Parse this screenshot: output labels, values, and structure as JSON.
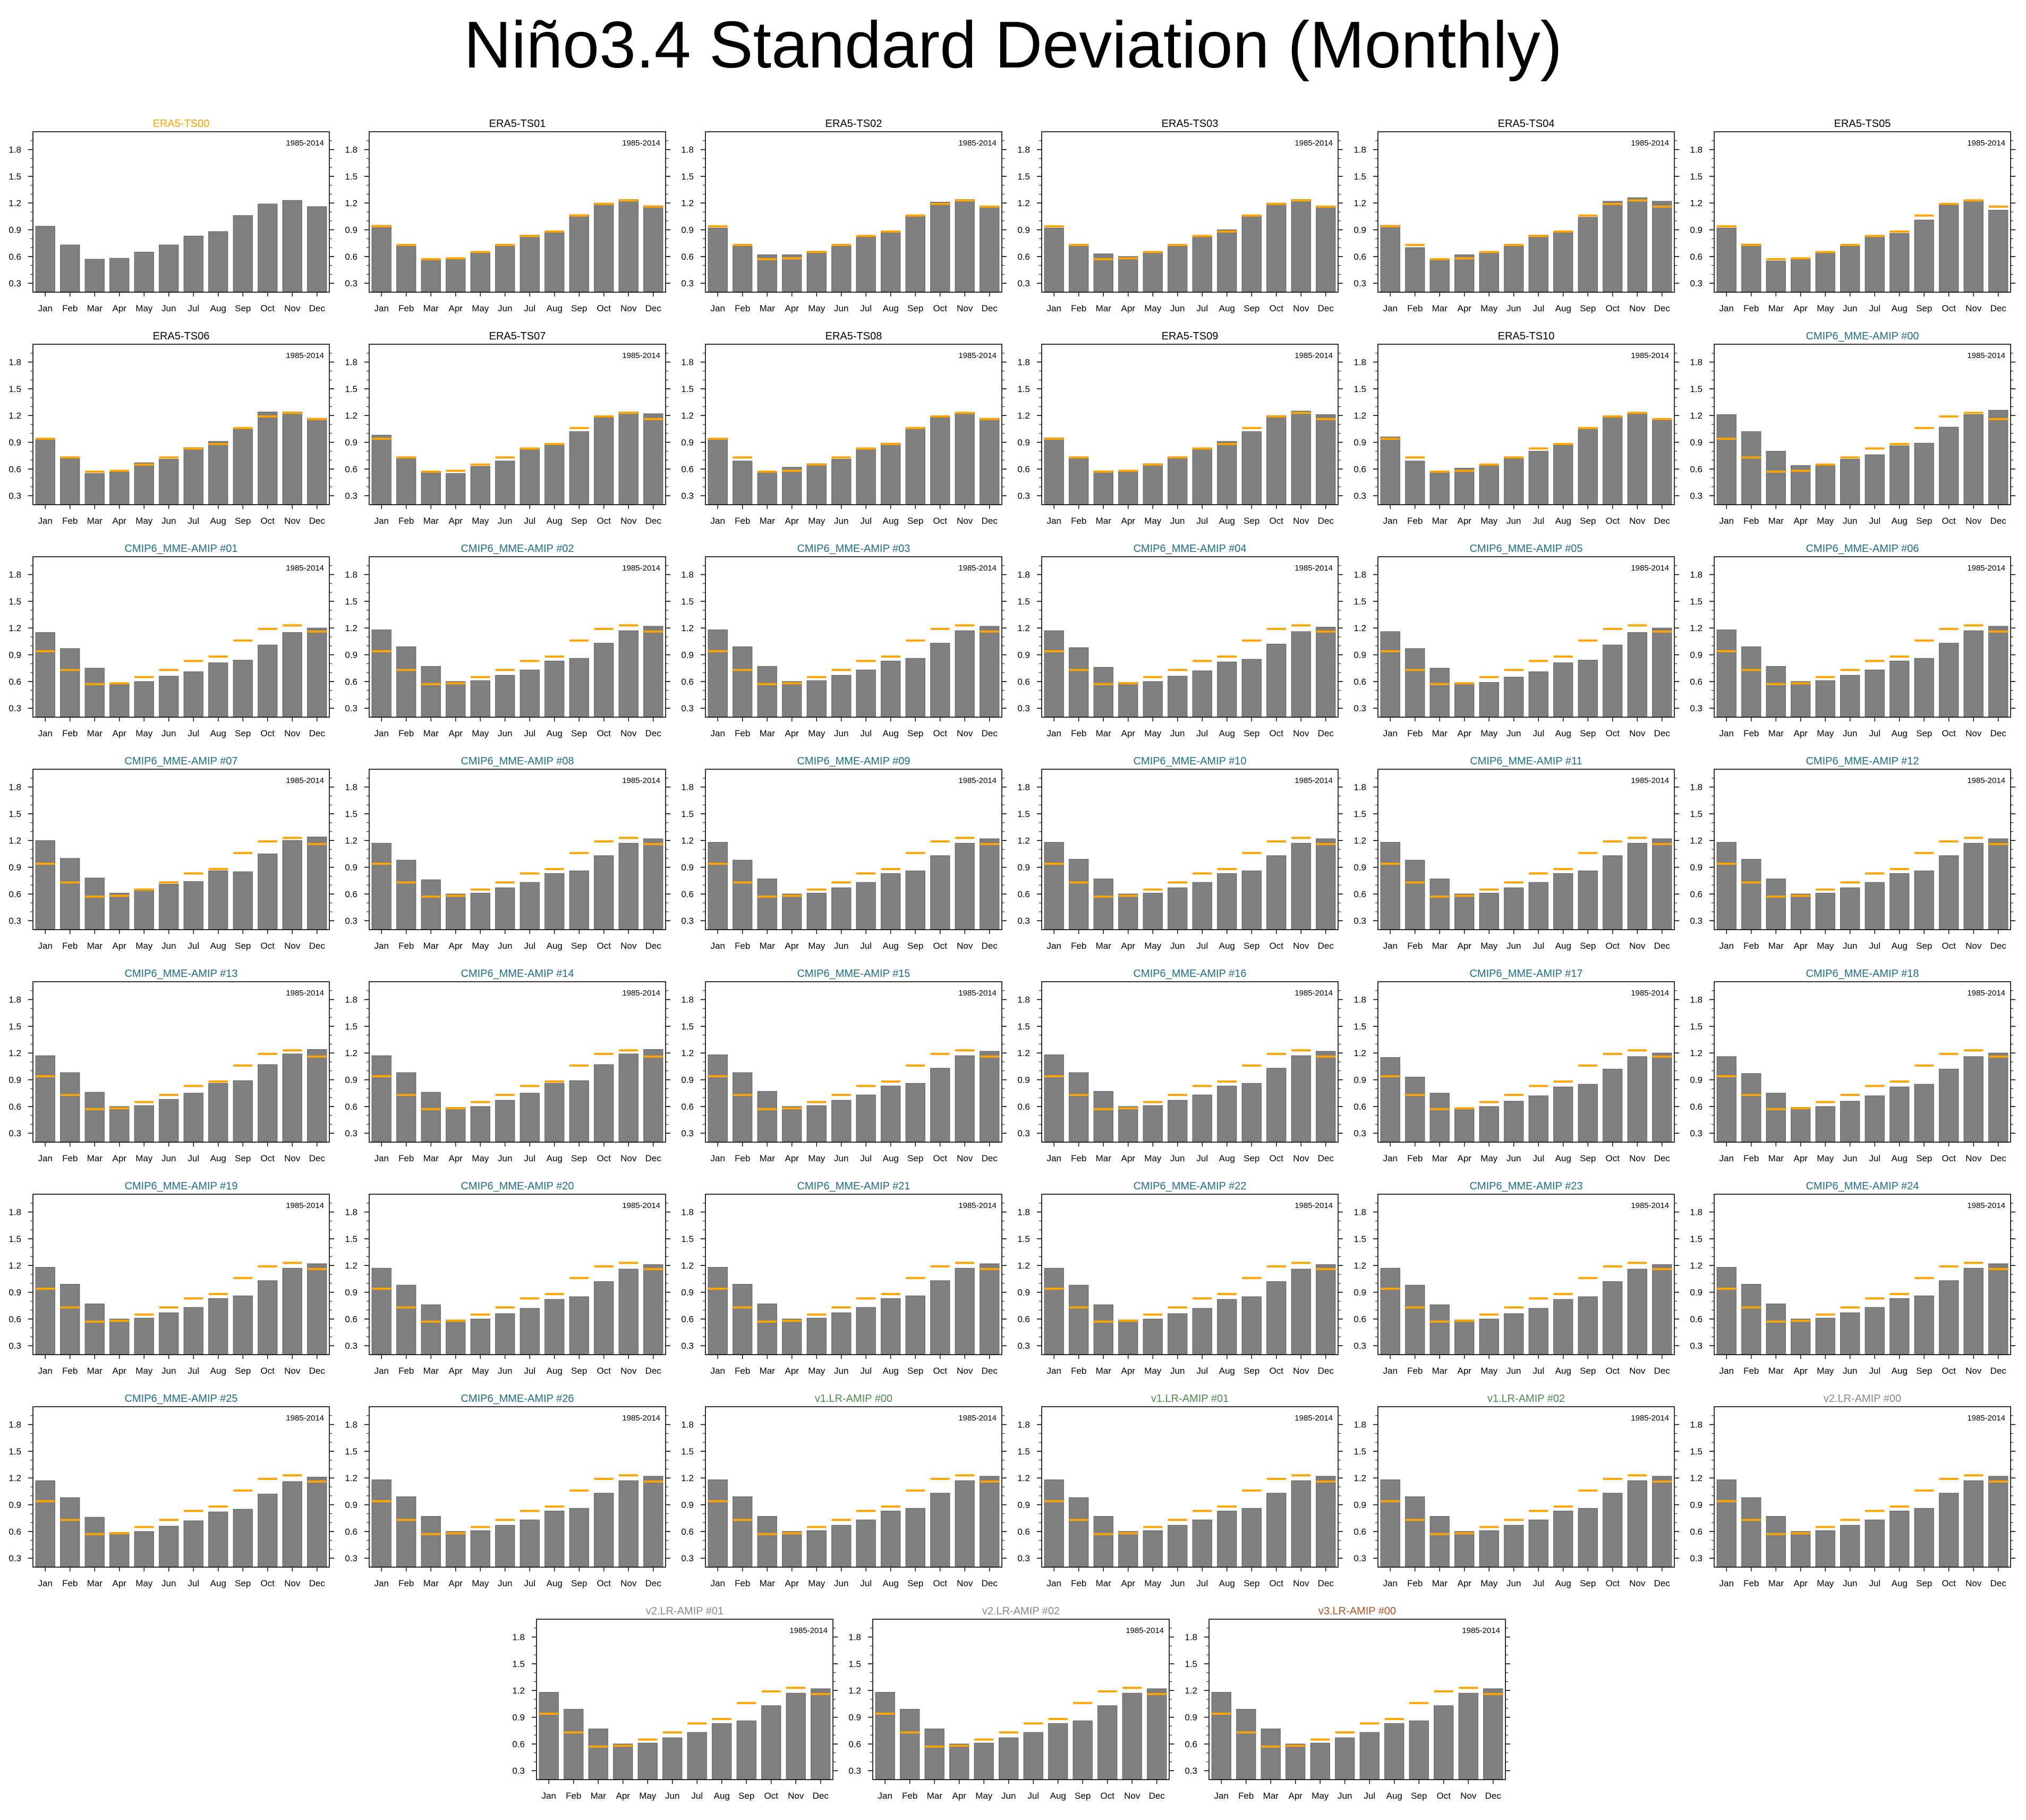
{
  "page": {
    "title": "Niño3.4 Standard Deviation (Monthly)"
  },
  "colors": {
    "bar": "#808080",
    "bar_outline": "#606060",
    "reference": "#ffa500",
    "era5_ref_title": "#ffa500",
    "era5_title": "#000000",
    "cmip6_title": "#1f6e8c",
    "v1_title": "#4d8a50",
    "v2_title": "#8a8a8a",
    "v3_title": "#c0501e"
  },
  "chart_data": {
    "type": "bar",
    "period": "1985-2014",
    "categories": [
      "Jan",
      "Feb",
      "Mar",
      "Apr",
      "May",
      "Jun",
      "Jul",
      "Aug",
      "Sep",
      "Oct",
      "Nov",
      "Dec"
    ],
    "ylim": [
      0.2,
      2.0
    ],
    "yticks": [
      "0.3",
      "0.6",
      "0.9",
      "1.2",
      "1.5",
      "1.8"
    ],
    "reference": {
      "name": "ERA5-TS00",
      "values": [
        0.94,
        0.73,
        0.57,
        0.58,
        0.65,
        0.73,
        0.83,
        0.88,
        1.06,
        1.19,
        1.23,
        1.16
      ]
    },
    "panels": [
      {
        "title": "ERA5-TS00",
        "group": "era5_ref",
        "values": [
          0.94,
          0.73,
          0.57,
          0.58,
          0.65,
          0.73,
          0.83,
          0.88,
          1.06,
          1.19,
          1.23,
          1.16
        ]
      },
      {
        "title": "ERA5-TS01",
        "group": "era5",
        "values": [
          0.95,
          0.73,
          0.56,
          0.58,
          0.64,
          0.73,
          0.84,
          0.88,
          1.07,
          1.2,
          1.24,
          1.17
        ]
      },
      {
        "title": "ERA5-TS02",
        "group": "era5",
        "values": [
          0.92,
          0.72,
          0.62,
          0.62,
          0.66,
          0.72,
          0.82,
          0.88,
          1.06,
          1.21,
          1.24,
          1.16
        ]
      },
      {
        "title": "ERA5-TS03",
        "group": "era5",
        "values": [
          0.92,
          0.73,
          0.63,
          0.6,
          0.65,
          0.72,
          0.82,
          0.9,
          1.06,
          1.2,
          1.24,
          1.16
        ]
      },
      {
        "title": "ERA5-TS04",
        "group": "era5",
        "values": [
          0.95,
          0.7,
          0.57,
          0.62,
          0.65,
          0.72,
          0.84,
          0.88,
          1.04,
          1.22,
          1.26,
          1.22
        ]
      },
      {
        "title": "ERA5-TS05",
        "group": "era5",
        "values": [
          0.92,
          0.74,
          0.55,
          0.58,
          0.65,
          0.72,
          0.83,
          0.86,
          1.01,
          1.18,
          1.23,
          1.12
        ]
      },
      {
        "title": "ERA5-TS06",
        "group": "era5",
        "values": [
          0.93,
          0.73,
          0.55,
          0.57,
          0.67,
          0.71,
          0.84,
          0.91,
          1.05,
          1.24,
          1.24,
          1.17
        ]
      },
      {
        "title": "ERA5-TS07",
        "group": "era5",
        "values": [
          0.98,
          0.73,
          0.57,
          0.55,
          0.63,
          0.69,
          0.83,
          0.88,
          1.02,
          1.18,
          1.24,
          1.22
        ]
      },
      {
        "title": "ERA5-TS08",
        "group": "era5",
        "values": [
          0.94,
          0.69,
          0.56,
          0.62,
          0.66,
          0.71,
          0.83,
          0.89,
          1.06,
          1.18,
          1.23,
          1.17
        ]
      },
      {
        "title": "ERA5-TS09",
        "group": "era5",
        "values": [
          0.95,
          0.73,
          0.58,
          0.58,
          0.66,
          0.73,
          0.83,
          0.91,
          1.02,
          1.2,
          1.25,
          1.21
        ]
      },
      {
        "title": "ERA5-TS10",
        "group": "era5",
        "values": [
          0.96,
          0.69,
          0.57,
          0.61,
          0.64,
          0.73,
          0.8,
          0.88,
          1.06,
          1.19,
          1.23,
          1.15
        ]
      },
      {
        "title": "CMIP6_MME-AMIP  #00",
        "group": "cmip6",
        "values": [
          1.21,
          1.02,
          0.8,
          0.64,
          0.64,
          0.71,
          0.76,
          0.86,
          0.89,
          1.07,
          1.21,
          1.26
        ]
      },
      {
        "title": "CMIP6_MME-AMIP  #01",
        "group": "cmip6",
        "values": [
          1.15,
          0.97,
          0.75,
          0.58,
          0.6,
          0.66,
          0.71,
          0.81,
          0.84,
          1.01,
          1.15,
          1.2
        ]
      },
      {
        "title": "CMIP6_MME-AMIP  #02",
        "group": "cmip6",
        "values": [
          1.18,
          0.99,
          0.77,
          0.6,
          0.61,
          0.67,
          0.73,
          0.83,
          0.86,
          1.03,
          1.17,
          1.22
        ]
      },
      {
        "title": "CMIP6_MME-AMIP  #03",
        "group": "cmip6",
        "values": [
          1.18,
          0.99,
          0.77,
          0.6,
          0.61,
          0.67,
          0.73,
          0.83,
          0.86,
          1.03,
          1.17,
          1.22
        ]
      },
      {
        "title": "CMIP6_MME-AMIP  #04",
        "group": "cmip6",
        "values": [
          1.17,
          0.98,
          0.76,
          0.59,
          0.6,
          0.66,
          0.72,
          0.82,
          0.85,
          1.02,
          1.16,
          1.21
        ]
      },
      {
        "title": "CMIP6_MME-AMIP  #05",
        "group": "cmip6",
        "values": [
          1.16,
          0.97,
          0.75,
          0.58,
          0.59,
          0.65,
          0.71,
          0.81,
          0.84,
          1.01,
          1.15,
          1.2
        ]
      },
      {
        "title": "CMIP6_MME-AMIP  #06",
        "group": "cmip6",
        "values": [
          1.18,
          0.99,
          0.77,
          0.6,
          0.61,
          0.67,
          0.73,
          0.83,
          0.86,
          1.03,
          1.17,
          1.22
        ]
      },
      {
        "title": "CMIP6_MME-AMIP  #07",
        "group": "cmip6",
        "values": [
          1.2,
          1.0,
          0.78,
          0.61,
          0.65,
          0.71,
          0.74,
          0.86,
          0.85,
          1.05,
          1.2,
          1.24
        ]
      },
      {
        "title": "CMIP6_MME-AMIP  #08",
        "group": "cmip6",
        "values": [
          1.17,
          0.98,
          0.76,
          0.6,
          0.61,
          0.67,
          0.73,
          0.83,
          0.86,
          1.03,
          1.17,
          1.22
        ]
      },
      {
        "title": "CMIP6_MME-AMIP  #09",
        "group": "cmip6",
        "values": [
          1.18,
          0.98,
          0.77,
          0.6,
          0.61,
          0.67,
          0.73,
          0.83,
          0.86,
          1.03,
          1.17,
          1.22
        ]
      },
      {
        "title": "CMIP6_MME-AMIP  #10",
        "group": "cmip6",
        "values": [
          1.18,
          0.99,
          0.77,
          0.6,
          0.61,
          0.67,
          0.73,
          0.83,
          0.86,
          1.03,
          1.17,
          1.22
        ]
      },
      {
        "title": "CMIP6_MME-AMIP  #11",
        "group": "cmip6",
        "values": [
          1.18,
          0.98,
          0.77,
          0.6,
          0.61,
          0.67,
          0.73,
          0.83,
          0.86,
          1.03,
          1.17,
          1.22
        ]
      },
      {
        "title": "CMIP6_MME-AMIP  #12",
        "group": "cmip6",
        "values": [
          1.18,
          0.99,
          0.77,
          0.6,
          0.61,
          0.67,
          0.73,
          0.83,
          0.86,
          1.03,
          1.17,
          1.22
        ]
      },
      {
        "title": "CMIP6_MME-AMIP  #13",
        "group": "cmip6",
        "values": [
          1.17,
          0.98,
          0.76,
          0.6,
          0.61,
          0.68,
          0.75,
          0.86,
          0.89,
          1.07,
          1.19,
          1.24
        ]
      },
      {
        "title": "CMIP6_MME-AMIP  #14",
        "group": "cmip6",
        "values": [
          1.17,
          0.98,
          0.76,
          0.59,
          0.6,
          0.67,
          0.75,
          0.86,
          0.89,
          1.07,
          1.19,
          1.24
        ]
      },
      {
        "title": "CMIP6_MME-AMIP  #15",
        "group": "cmip6",
        "values": [
          1.18,
          0.98,
          0.77,
          0.6,
          0.61,
          0.67,
          0.73,
          0.83,
          0.86,
          1.03,
          1.17,
          1.22
        ]
      },
      {
        "title": "CMIP6_MME-AMIP  #16",
        "group": "cmip6",
        "values": [
          1.18,
          0.98,
          0.77,
          0.6,
          0.61,
          0.67,
          0.73,
          0.83,
          0.86,
          1.03,
          1.17,
          1.22
        ]
      },
      {
        "title": "CMIP6_MME-AMIP  #17",
        "group": "cmip6",
        "values": [
          1.15,
          0.93,
          0.75,
          0.58,
          0.6,
          0.66,
          0.72,
          0.82,
          0.85,
          1.02,
          1.16,
          1.2
        ]
      },
      {
        "title": "CMIP6_MME-AMIP  #18",
        "group": "cmip6",
        "values": [
          1.16,
          0.97,
          0.75,
          0.59,
          0.6,
          0.66,
          0.72,
          0.82,
          0.85,
          1.02,
          1.16,
          1.2
        ]
      },
      {
        "title": "CMIP6_MME-AMIP  #19",
        "group": "cmip6",
        "values": [
          1.18,
          0.99,
          0.77,
          0.6,
          0.61,
          0.67,
          0.73,
          0.83,
          0.86,
          1.03,
          1.17,
          1.22
        ]
      },
      {
        "title": "CMIP6_MME-AMIP  #20",
        "group": "cmip6",
        "values": [
          1.17,
          0.98,
          0.76,
          0.59,
          0.6,
          0.66,
          0.72,
          0.82,
          0.85,
          1.02,
          1.16,
          1.21
        ]
      },
      {
        "title": "CMIP6_MME-AMIP  #21",
        "group": "cmip6",
        "values": [
          1.18,
          0.99,
          0.77,
          0.6,
          0.61,
          0.67,
          0.73,
          0.83,
          0.86,
          1.03,
          1.17,
          1.22
        ]
      },
      {
        "title": "CMIP6_MME-AMIP  #22",
        "group": "cmip6",
        "values": [
          1.17,
          0.98,
          0.76,
          0.59,
          0.6,
          0.66,
          0.72,
          0.82,
          0.85,
          1.02,
          1.16,
          1.21
        ]
      },
      {
        "title": "CMIP6_MME-AMIP  #23",
        "group": "cmip6",
        "values": [
          1.17,
          0.98,
          0.76,
          0.59,
          0.6,
          0.66,
          0.72,
          0.82,
          0.85,
          1.02,
          1.16,
          1.21
        ]
      },
      {
        "title": "CMIP6_MME-AMIP  #24",
        "group": "cmip6",
        "values": [
          1.18,
          0.99,
          0.77,
          0.6,
          0.61,
          0.67,
          0.73,
          0.83,
          0.86,
          1.03,
          1.17,
          1.22
        ]
      },
      {
        "title": "CMIP6_MME-AMIP  #25",
        "group": "cmip6",
        "values": [
          1.17,
          0.98,
          0.76,
          0.59,
          0.6,
          0.66,
          0.72,
          0.82,
          0.85,
          1.02,
          1.16,
          1.21
        ]
      },
      {
        "title": "CMIP6_MME-AMIP  #26",
        "group": "cmip6",
        "values": [
          1.18,
          0.99,
          0.77,
          0.6,
          0.61,
          0.67,
          0.73,
          0.83,
          0.86,
          1.03,
          1.17,
          1.22
        ]
      },
      {
        "title": "v1.LR-AMIP  #00",
        "group": "v1",
        "values": [
          1.18,
          0.99,
          0.77,
          0.6,
          0.61,
          0.67,
          0.73,
          0.83,
          0.86,
          1.03,
          1.17,
          1.22
        ]
      },
      {
        "title": "v1.LR-AMIP  #01",
        "group": "v1",
        "values": [
          1.18,
          0.98,
          0.77,
          0.6,
          0.61,
          0.67,
          0.73,
          0.83,
          0.86,
          1.03,
          1.17,
          1.22
        ]
      },
      {
        "title": "v1.LR-AMIP  #02",
        "group": "v1",
        "values": [
          1.18,
          0.99,
          0.77,
          0.6,
          0.61,
          0.67,
          0.73,
          0.83,
          0.86,
          1.03,
          1.17,
          1.22
        ]
      },
      {
        "title": "v2.LR-AMIP  #00",
        "group": "v2",
        "values": [
          1.18,
          0.98,
          0.77,
          0.6,
          0.61,
          0.67,
          0.73,
          0.83,
          0.86,
          1.03,
          1.17,
          1.22
        ]
      },
      {
        "title": "v2.LR-AMIP  #01",
        "group": "v2",
        "values": [
          1.18,
          0.99,
          0.77,
          0.6,
          0.61,
          0.67,
          0.73,
          0.83,
          0.86,
          1.03,
          1.17,
          1.22
        ]
      },
      {
        "title": "v2.LR-AMIP  #02",
        "group": "v2",
        "values": [
          1.18,
          0.99,
          0.77,
          0.6,
          0.61,
          0.67,
          0.73,
          0.83,
          0.86,
          1.03,
          1.17,
          1.22
        ]
      },
      {
        "title": "v3.LR-AMIP  #00",
        "group": "v3",
        "values": [
          1.18,
          0.99,
          0.77,
          0.6,
          0.61,
          0.67,
          0.73,
          0.83,
          0.86,
          1.03,
          1.17,
          1.22
        ]
      }
    ]
  }
}
